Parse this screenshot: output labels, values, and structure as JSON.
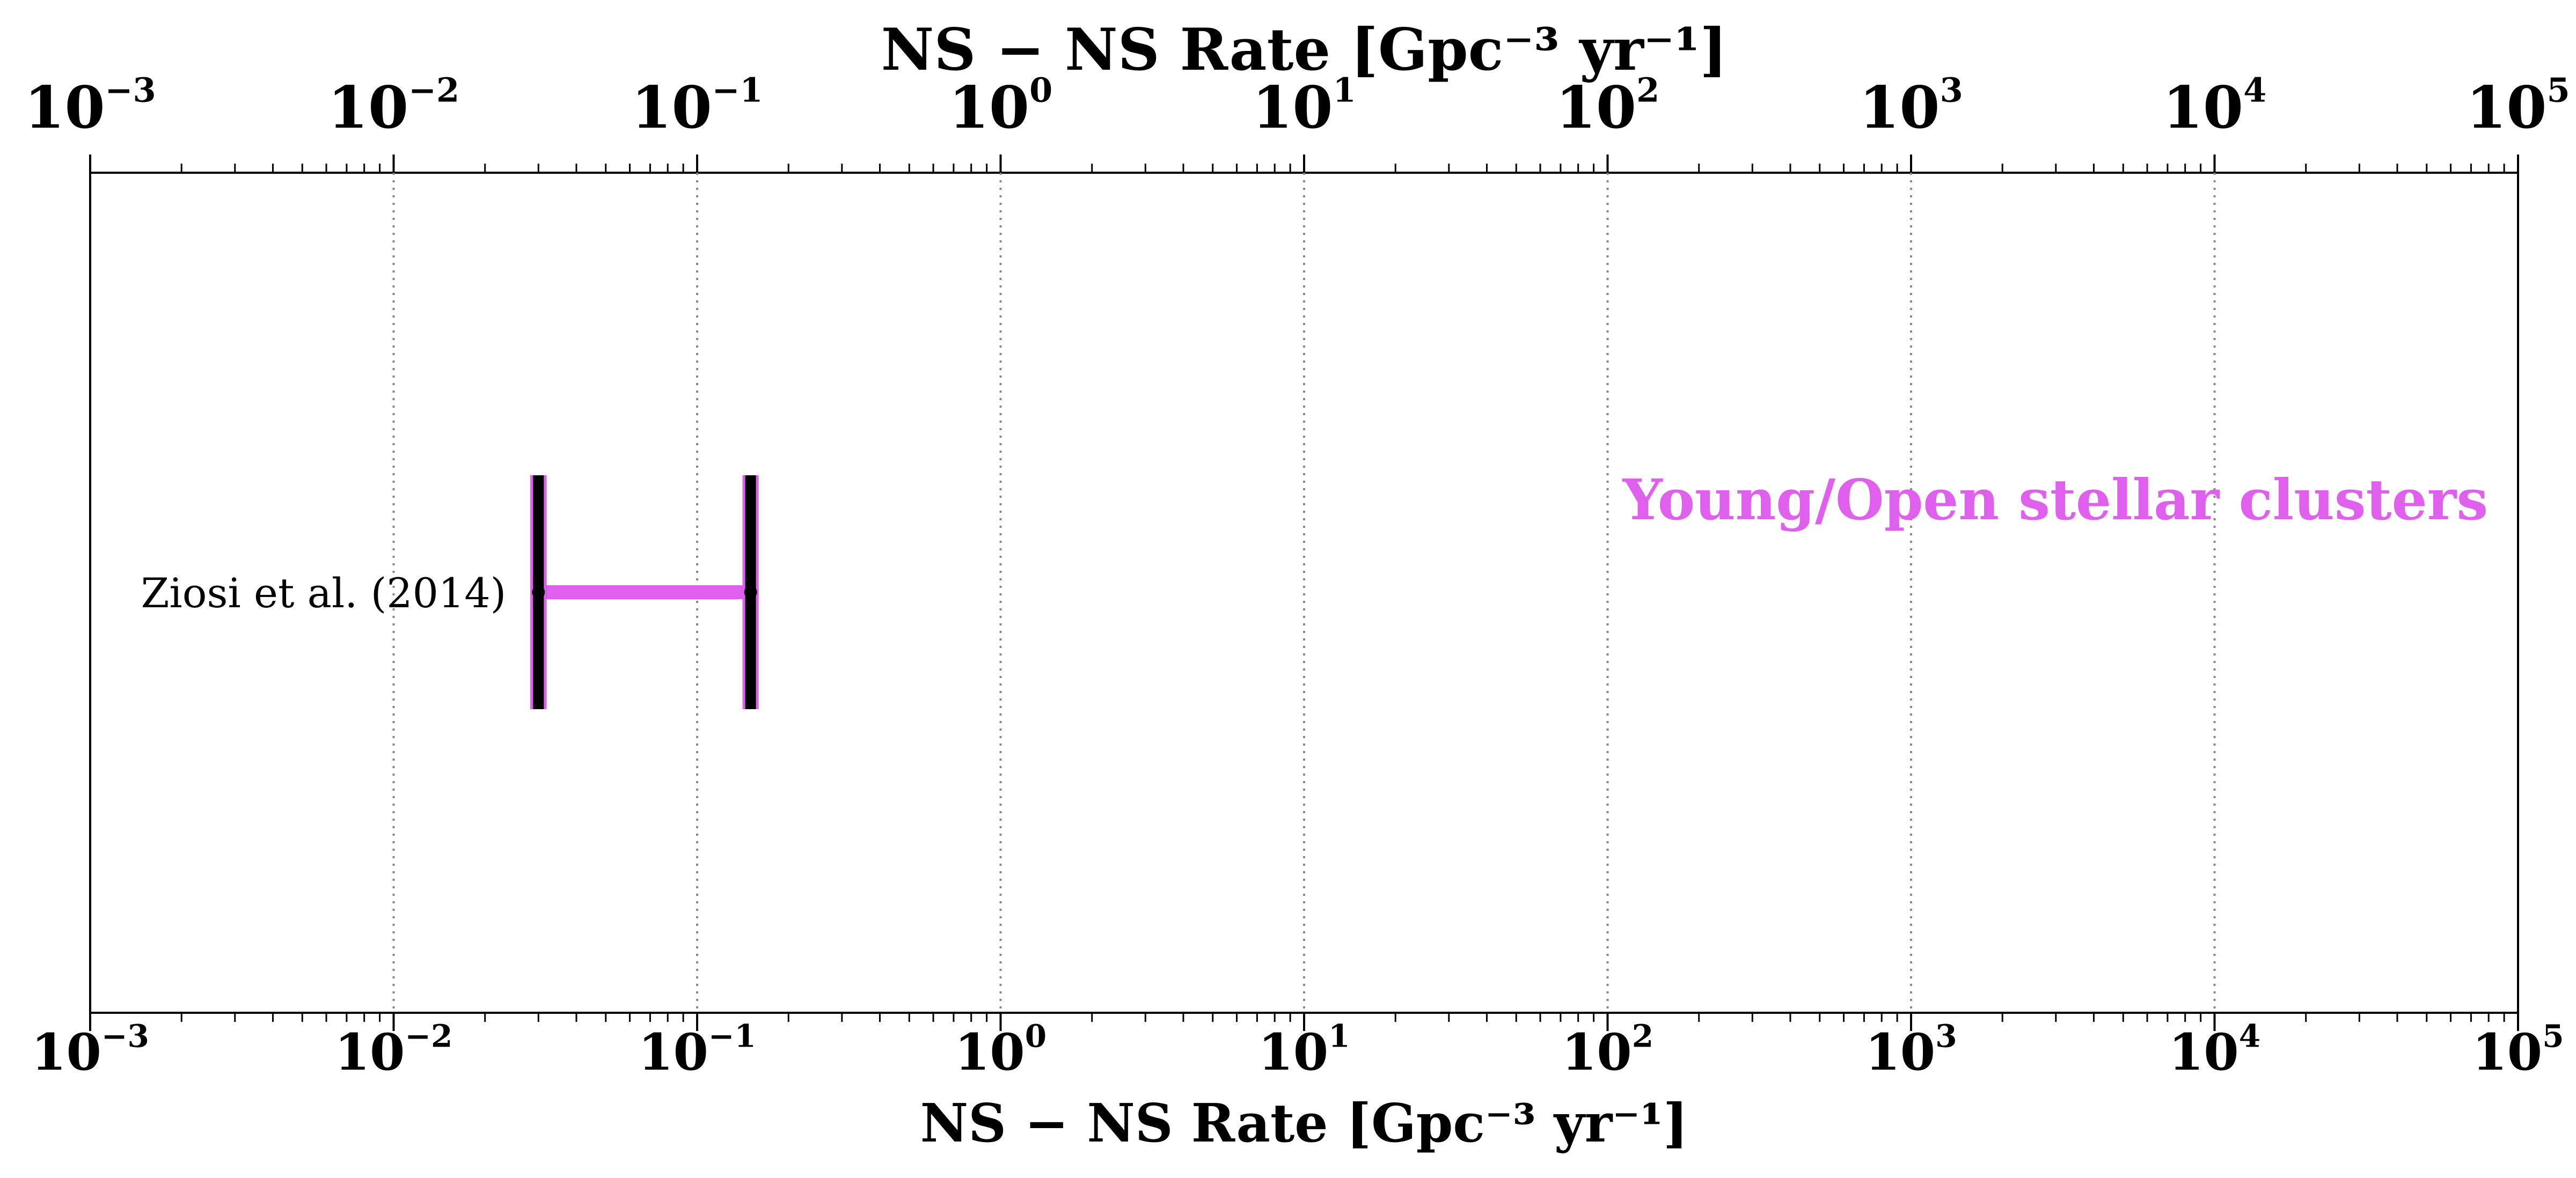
{
  "chart_data": {
    "type": "range",
    "xscale": "log",
    "xlim": [
      0.001,
      100000
    ],
    "xlabel": "NS − NS  Rate [Gpc⁻³ yr⁻¹]",
    "top_xlabel": "NS − NS  Rate [Gpc⁻³ yr⁻¹]",
    "grid": "vertical dotted at decades",
    "decades": [
      {
        "value": 0.001,
        "base": "10",
        "exp": "−3"
      },
      {
        "value": 0.01,
        "base": "10",
        "exp": "−2"
      },
      {
        "value": 0.1,
        "base": "10",
        "exp": "−1"
      },
      {
        "value": 1,
        "base": "10",
        "exp": "0"
      },
      {
        "value": 10,
        "base": "10",
        "exp": "1"
      },
      {
        "value": 100,
        "base": "10",
        "exp": "2"
      },
      {
        "value": 1000,
        "base": "10",
        "exp": "3"
      },
      {
        "value": 10000,
        "base": "10",
        "exp": "4"
      },
      {
        "value": 100000,
        "base": "10",
        "exp": "5"
      }
    ],
    "ranges": [
      {
        "label": "Ziosi et al. (2014)",
        "low": 0.03,
        "high": 0.15,
        "color": "#e060ee"
      }
    ],
    "group_label": "Young/Open stellar clusters",
    "group_color": "#e060ee"
  }
}
